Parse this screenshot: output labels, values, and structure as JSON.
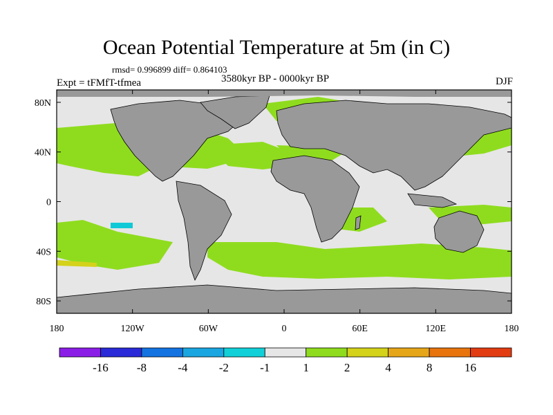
{
  "title": "Ocean Potential Temperature at 5m (in C)",
  "stats": "rmsd= 0.996899 diff= 0.864103",
  "experiment": "Expt = tFMfT-tfmea",
  "period": "3580kyr BP - 0000kyr BP",
  "season": "DJF",
  "map": {
    "x_ticks": [
      {
        "lon": -180,
        "label": "180"
      },
      {
        "lon": -120,
        "label": "120W"
      },
      {
        "lon": -60,
        "label": "60W"
      },
      {
        "lon": 0,
        "label": "0"
      },
      {
        "lon": 60,
        "label": "60E"
      },
      {
        "lon": 120,
        "label": "120E"
      },
      {
        "lon": 180,
        "label": "180"
      }
    ],
    "y_ticks": [
      {
        "lat": 80,
        "label": "80N"
      },
      {
        "lat": 40,
        "label": "40N"
      },
      {
        "lat": 0,
        "label": "0"
      },
      {
        "lat": -40,
        "label": "40S"
      },
      {
        "lat": -80,
        "label": "80S"
      }
    ],
    "colors": {
      "ocean_neutral": "#e6e6e6",
      "land": "#999999",
      "warm_1_2": "#8fdc1e",
      "warm_2_4": "#d4d21a",
      "cool": "#10c9d6"
    }
  },
  "colorbar": {
    "colors": [
      "#8a1ee6",
      "#2a2ad8",
      "#1473e0",
      "#1aa6e0",
      "#12d0d8",
      "#e6e6e6",
      "#8fdc1e",
      "#d4d21a",
      "#e6a61a",
      "#e8740e",
      "#e23c12"
    ],
    "labels": [
      "-16",
      "-8",
      "-4",
      "-2",
      "-1",
      "1",
      "2",
      "4",
      "8",
      "16"
    ]
  }
}
